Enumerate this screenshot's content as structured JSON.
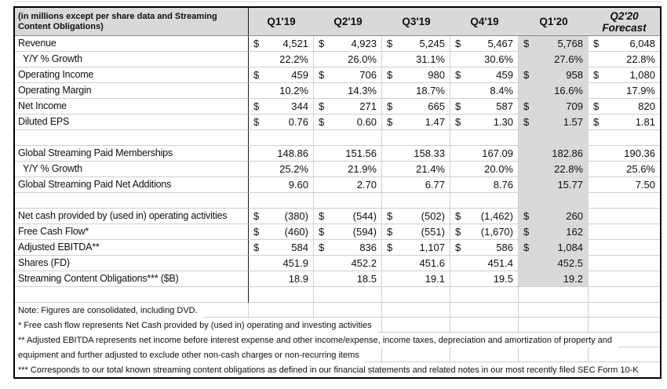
{
  "header": {
    "row_label": "(in millions except per share data and Streaming Content Obligations)",
    "columns": [
      {
        "label": "Q1'19"
      },
      {
        "label": "Q2'19"
      },
      {
        "label": "Q3'19"
      },
      {
        "label": "Q4'19"
      },
      {
        "label": "Q1'20",
        "shaded": true
      },
      {
        "label": "Q2'20",
        "sublabel": "Forecast",
        "italic": true
      }
    ]
  },
  "rows": [
    {
      "label": "Revenue",
      "type": "money",
      "values": [
        "4,521",
        "4,923",
        "5,245",
        "5,467",
        "5,768",
        "6,048"
      ]
    },
    {
      "label": "Y/Y % Growth",
      "type": "percent",
      "indent": true,
      "values": [
        "22.2%",
        "26.0%",
        "31.1%",
        "30.6%",
        "27.6%",
        "22.8%"
      ]
    },
    {
      "label": "Operating Income",
      "type": "money",
      "values": [
        "459",
        "706",
        "980",
        "459",
        "958",
        "1,080"
      ]
    },
    {
      "label": "Operating Margin",
      "type": "percent",
      "values": [
        "10.2%",
        "14.3%",
        "18.7%",
        "8.4%",
        "16.6%",
        "17.9%"
      ]
    },
    {
      "label": "Net Income",
      "type": "money",
      "values": [
        "344",
        "271",
        "665",
        "587",
        "709",
        "820"
      ]
    },
    {
      "label": "Diluted EPS",
      "type": "money",
      "values": [
        "0.76",
        "0.60",
        "1.47",
        "1.30",
        "1.57",
        "1.81"
      ]
    },
    {
      "type": "blank"
    },
    {
      "label": "Global Streaming Paid Memberships",
      "type": "number",
      "values": [
        "148.86",
        "151.56",
        "158.33",
        "167.09",
        "182.86",
        "190.36"
      ]
    },
    {
      "label": "Y/Y % Growth",
      "type": "percent",
      "indent": true,
      "values": [
        "25.2%",
        "21.9%",
        "21.4%",
        "20.0%",
        "22.8%",
        "25.6%"
      ]
    },
    {
      "label": "Global Streaming Paid Net Additions",
      "type": "number",
      "values": [
        "9.60",
        "2.70",
        "6.77",
        "8.76",
        "15.77",
        "7.50"
      ]
    },
    {
      "type": "blank"
    },
    {
      "label": "Net cash provided by (used in) operating activities",
      "type": "money",
      "values": [
        "(380)",
        "(544)",
        "(502)",
        "(1,462)",
        "260",
        ""
      ]
    },
    {
      "label": "Free Cash Flow*",
      "type": "money",
      "values": [
        "(460)",
        "(594)",
        "(551)",
        "(1,670)",
        "162",
        ""
      ]
    },
    {
      "label": "Adjusted EBITDA**",
      "type": "money",
      "values": [
        "584",
        "836",
        "1,107",
        "586",
        "1,084",
        ""
      ]
    },
    {
      "label": "Shares (FD)",
      "type": "number",
      "values": [
        "451.9",
        "452.2",
        "451.6",
        "451.4",
        "452.5",
        ""
      ]
    },
    {
      "label": "Streaming Content Obligations*** ($B)",
      "type": "number",
      "values": [
        "18.9",
        "18.5",
        "19.1",
        "19.5",
        "19.2",
        ""
      ]
    },
    {
      "type": "blank"
    }
  ],
  "notes": [
    "Note: Figures are consolidated, including DVD.",
    "* Free cash flow represents Net Cash provided by (used in) operating and investing activities",
    "** Adjusted EBITDA represents net income before interest expense and other income/expense, income taxes, depreciation and amortization of property and",
    "equipment and further adjusted to exclude other non-cash charges or non-recurring items",
    "*** Corresponds to our total known streaming content obligations as defined in our financial statements and related notes in our most recently filed SEC Form 10-K"
  ],
  "colors": {
    "shaded_fill": "#d9d9d9",
    "gridline": "#cfcfcf",
    "outer_border": "#000000",
    "label_divider": "#1a1a1a",
    "header_underline": "#8c8c8c",
    "text": "#0f0f0f"
  },
  "currency_symbol": "$"
}
